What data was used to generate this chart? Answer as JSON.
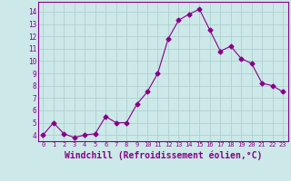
{
  "x": [
    0,
    1,
    2,
    3,
    4,
    5,
    6,
    7,
    8,
    9,
    10,
    11,
    12,
    13,
    14,
    15,
    16,
    17,
    18,
    19,
    20,
    21,
    22,
    23
  ],
  "y": [
    4.0,
    5.0,
    4.1,
    3.8,
    4.0,
    4.1,
    5.5,
    5.0,
    5.0,
    6.5,
    7.5,
    9.0,
    11.8,
    13.3,
    13.8,
    14.2,
    12.5,
    10.8,
    11.2,
    10.2,
    9.8,
    8.2,
    8.0,
    7.5
  ],
  "line_color": "#880088",
  "marker": "D",
  "marker_size": 2.5,
  "bg_color": "#cce8e8",
  "grid_color": "#aacccc",
  "xlabel": "Windchill (Refroidissement éolien,°C)",
  "xlabel_fontsize": 7,
  "yticks": [
    4,
    5,
    6,
    7,
    8,
    9,
    10,
    11,
    12,
    13,
    14
  ],
  "ylim": [
    3.5,
    14.8
  ],
  "xlim": [
    -0.5,
    23.5
  ],
  "xtick_labels": [
    "0",
    "1",
    "2",
    "3",
    "4",
    "5",
    "6",
    "7",
    "8",
    "9",
    "10",
    "11",
    "12",
    "13",
    "14",
    "15",
    "16",
    "17",
    "18",
    "19",
    "20",
    "21",
    "22",
    "23"
  ]
}
